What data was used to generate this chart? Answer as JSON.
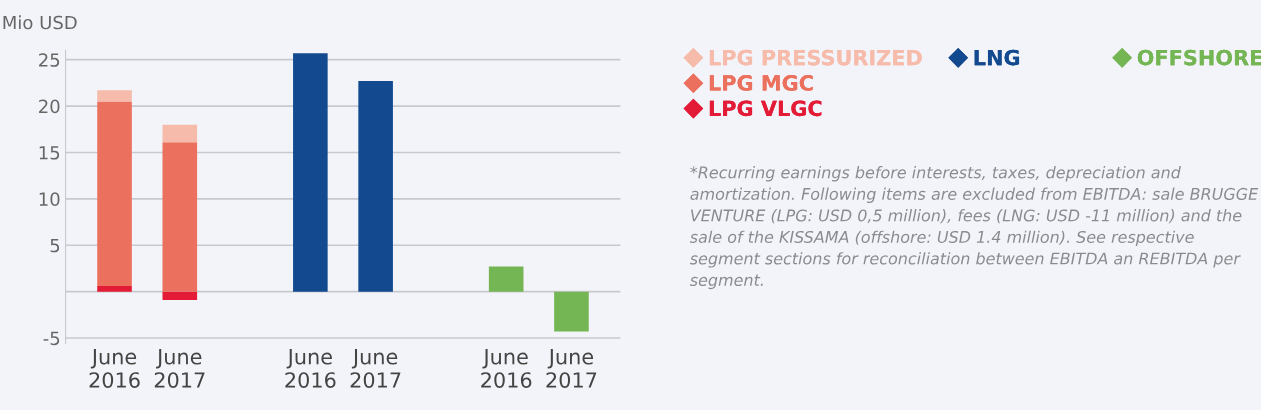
{
  "chart_data": {
    "type": "bar",
    "stacked": true,
    "ylabel": "Mio USD",
    "categories": [
      "June\n2016",
      "June\n2017",
      null,
      "June\n2016",
      "June\n2017",
      null,
      "June\n2016",
      "June\n2017"
    ],
    "series": [
      {
        "name": "LPG VLGC",
        "color": "#e31b36",
        "values": [
          0.6,
          -0.9,
          null,
          null,
          null,
          null,
          null,
          null
        ]
      },
      {
        "name": "LPG MGC",
        "color": "#eb705d",
        "values": [
          19.9,
          16.1,
          null,
          null,
          null,
          null,
          null,
          null
        ]
      },
      {
        "name": "LPG PRESSURIZED",
        "color": "#f6bbaa",
        "values": [
          1.2,
          1.9,
          null,
          null,
          null,
          null,
          null,
          null
        ]
      },
      {
        "name": "LNG",
        "color": "#134a8f",
        "values": [
          null,
          null,
          null,
          25.7,
          22.7,
          null,
          null,
          null
        ]
      },
      {
        "name": "OFFSHORE",
        "color": "#74b554",
        "values": [
          null,
          null,
          null,
          null,
          null,
          null,
          2.7,
          -4.3
        ]
      }
    ],
    "ylim": [
      -5.6,
      26
    ],
    "yticks": [
      25,
      20,
      15,
      10,
      5,
      {
        "value": 0,
        "label": null
      },
      -5
    ],
    "grid": "y",
    "legend": "right",
    "marker": "diamond",
    "annotations": [
      "*Recurring earnings before interests, taxes, depreciation and amortization. Following items are excluded from EBITDA: sale BRUGGE VENTURE (LPG: USD 0,5 million), fees (LNG: USD -11 million) and the sale of the KISSAMA (offshore: USD 1.4 million). See respective segment sections for reconciliation between EBITDA an REBITDA per segment."
    ]
  }
}
